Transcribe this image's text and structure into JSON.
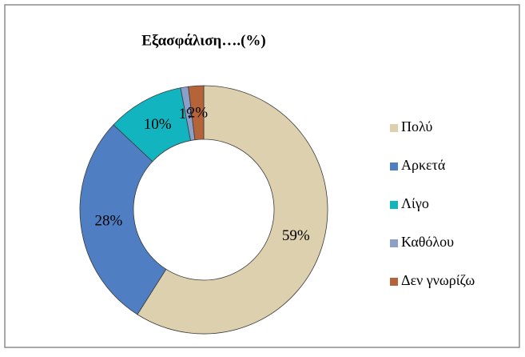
{
  "chart_data": {
    "type": "donut",
    "title": "Εξασφάλιση….(%)",
    "categories": [
      "Πολύ",
      "Αρκετά",
      "Λίγο",
      "Καθόλου",
      "Δεν γνωρίζω"
    ],
    "values": [
      59,
      28,
      10,
      1,
      2
    ],
    "value_labels": [
      "59%",
      "28%",
      "10%",
      "1%",
      "2%"
    ],
    "colors": [
      "#ddd0ae",
      "#4f7ec2",
      "#12b5bf",
      "#8c9fc9",
      "#b5643a"
    ],
    "legend": "right"
  }
}
